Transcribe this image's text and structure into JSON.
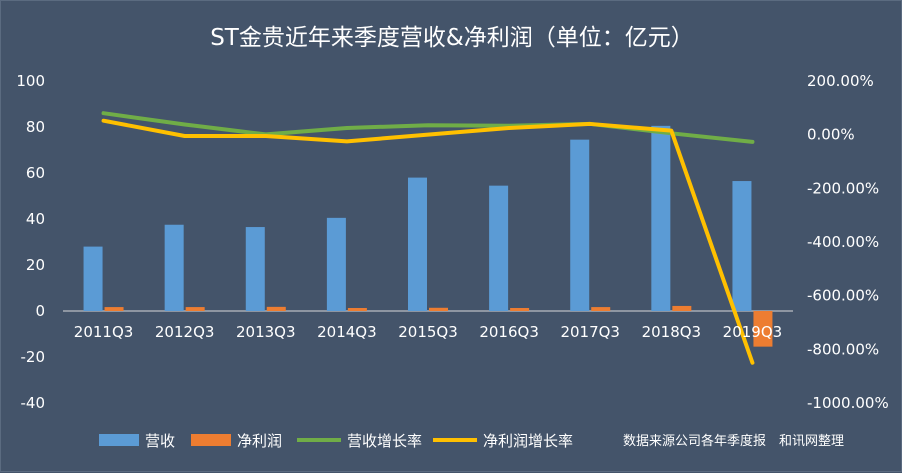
{
  "chart_data": {
    "type": "bar",
    "title": "ST金贵近年来季度营收&净利润（单位：亿元）",
    "categories": [
      "2011Q3",
      "2012Q3",
      "2013Q3",
      "2014Q3",
      "2015Q3",
      "2016Q3",
      "2017Q3",
      "2018Q3",
      "2019Q3"
    ],
    "left_axis": {
      "ylim": [
        -40,
        100
      ],
      "ticks": [
        "-40",
        "-20",
        "0",
        "20",
        "40",
        "60",
        "80",
        "100"
      ],
      "tick_values": [
        -40,
        -20,
        0,
        20,
        40,
        60,
        80,
        100
      ]
    },
    "right_axis": {
      "ylim": [
        -1000,
        200
      ],
      "ticks": [
        "-1000.00%",
        "-800.00%",
        "-600.00%",
        "-400.00%",
        "-200.00%",
        "0.00%",
        "200.00%"
      ],
      "tick_values": [
        -1000,
        -800,
        -600,
        -400,
        -200,
        0,
        200
      ]
    },
    "series": [
      {
        "name": "营收",
        "kind": "bar",
        "axis": "left",
        "color": "#5b9bd5",
        "values": [
          28,
          37.5,
          36.5,
          40.5,
          58,
          54.5,
          74.5,
          80.5,
          56.5
        ]
      },
      {
        "name": "净利润",
        "kind": "bar",
        "axis": "left",
        "color": "#ed7d31",
        "values": [
          1.7,
          1.7,
          1.8,
          1.3,
          1.4,
          1.3,
          1.7,
          2.2,
          -15.5
        ]
      },
      {
        "name": "营收增长率",
        "kind": "line",
        "axis": "right",
        "color": "#70ad47",
        "values": [
          80,
          38,
          1,
          25,
          35,
          33,
          40,
          5,
          -27
        ]
      },
      {
        "name": "净利润增长率",
        "kind": "line",
        "axis": "right",
        "color": "#ffc000",
        "values": [
          52,
          -5,
          -5,
          -25,
          0,
          25,
          40,
          15,
          -850
        ]
      }
    ],
    "legend_position": "bottom",
    "grid": false,
    "source_note": "数据来源公司各年季度报　和讯网整理"
  }
}
